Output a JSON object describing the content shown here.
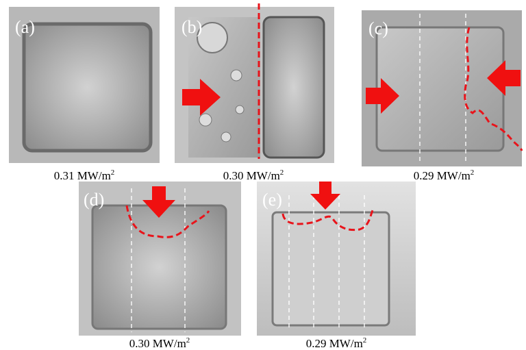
{
  "panels": [
    {
      "label": "(a)",
      "caption": "0.31 MW/m",
      "caption_sup": "2"
    },
    {
      "label": "(b)",
      "caption": "0.30 MW/m",
      "caption_sup": "2"
    },
    {
      "label": "(c)",
      "caption": "0.29 MW/m",
      "caption_sup": "2"
    },
    {
      "label": "(d)",
      "caption": "0.30 MW/m",
      "caption_sup": "2"
    },
    {
      "label": "(e)",
      "caption": "0.29 MW/m",
      "caption_sup": "2"
    }
  ]
}
